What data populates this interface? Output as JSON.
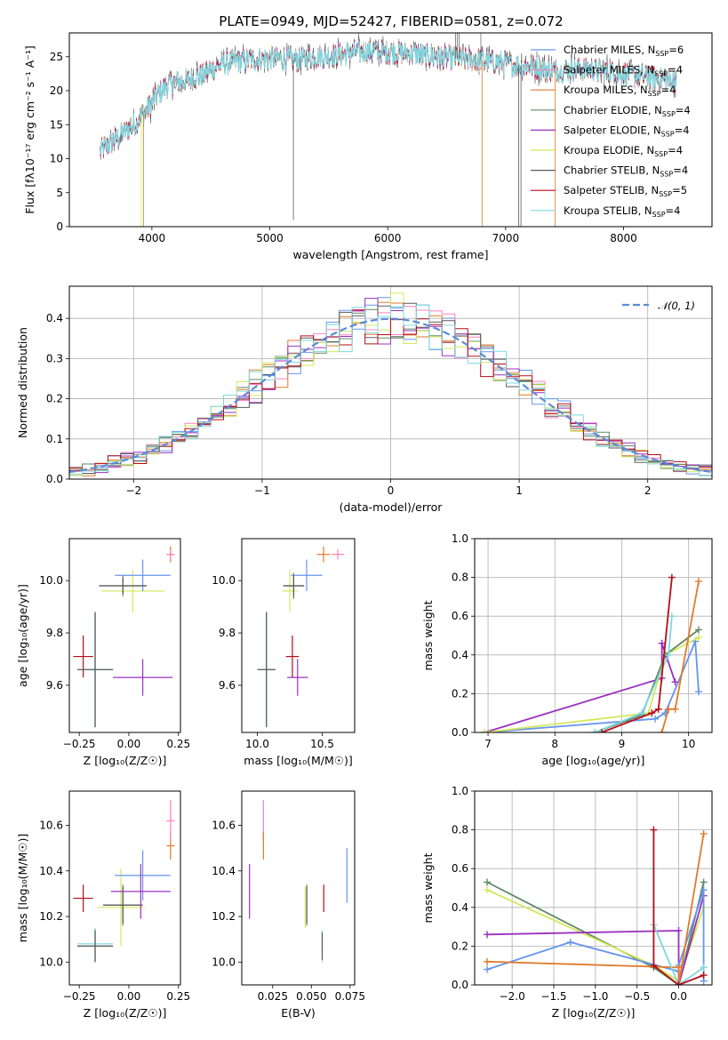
{
  "figure_title": "PLATE=0949, MJD=52427, FIBERID=0581, z=0.072",
  "chart_data": [
    {
      "id": "spectrum",
      "type": "line",
      "xlabel": "wavelength [Angstrom, rest frame]",
      "ylabel": "Flux [fλ10⁻¹⁷ erg cm⁻² s⁻¹ A⁻¹]",
      "xlim": [
        3300,
        8750
      ],
      "ylim": [
        0,
        28.5
      ],
      "xticks": [
        4000,
        5000,
        6000,
        7000,
        8000
      ],
      "yticks": [
        0,
        5,
        10,
        15,
        20,
        25
      ],
      "legend_position": "upper-right",
      "continuum_knots": [
        [
          3560,
          11
        ],
        [
          3700,
          13
        ],
        [
          3850,
          15
        ],
        [
          3950,
          17
        ],
        [
          4050,
          19.5
        ],
        [
          4150,
          21
        ],
        [
          4300,
          21.5
        ],
        [
          4450,
          22.5
        ],
        [
          4600,
          24
        ],
        [
          4800,
          24.5
        ],
        [
          5000,
          24.8
        ],
        [
          5200,
          24.5
        ],
        [
          5400,
          25
        ],
        [
          5600,
          25.3
        ],
        [
          5800,
          25.8
        ],
        [
          6000,
          25.7
        ],
        [
          6200,
          25.5
        ],
        [
          6400,
          25
        ],
        [
          6600,
          24.7
        ],
        [
          6800,
          24.5
        ],
        [
          7000,
          24
        ],
        [
          7200,
          23.5
        ],
        [
          7400,
          23
        ],
        [
          7600,
          23.2
        ],
        [
          7800,
          23
        ],
        [
          8000,
          22.5
        ],
        [
          8200,
          22
        ],
        [
          8400,
          21.5
        ]
      ],
      "series": [
        {
          "name": "Chabrier MILES, N",
          "sub": "SSP",
          "val": "=6",
          "color": "#6495ed"
        },
        {
          "name": "Salpeter MILES, N",
          "sub": "SSP",
          "val": "=4",
          "color": "#ff7fbf"
        },
        {
          "name": "Kroupa MILES, N",
          "sub": "SSP",
          "val": "=4",
          "color": "#e07a2c"
        },
        {
          "name": "Chabrier ELODIE, N",
          "sub": "SSP",
          "val": "=4",
          "color": "#5f8a64"
        },
        {
          "name": "Salpeter ELODIE, N",
          "sub": "SSP",
          "val": "=4",
          "color": "#9b30c0"
        },
        {
          "name": "Kroupa ELODIE, N",
          "sub": "SSP",
          "val": "=4",
          "color": "#d4e85a"
        },
        {
          "name": "Chabrier STELIB, N",
          "sub": "SSP",
          "val": "=4",
          "color": "#5a5a5a"
        },
        {
          "name": "Salpeter STELIB, N",
          "sub": "SSP",
          "val": "=5",
          "color": "#b50d1a"
        },
        {
          "name": "Kroupa STELIB, N",
          "sub": "SSP",
          "val": "=4",
          "color": "#7fd8e0"
        }
      ]
    },
    {
      "id": "residuals",
      "type": "step",
      "xlabel": "(data-model)/error",
      "ylabel": "Normed distribution",
      "xlim": [
        -2.5,
        2.5
      ],
      "ylim": [
        0,
        0.48
      ],
      "xticks": [
        -2,
        -1,
        0,
        1,
        2
      ],
      "xtick_labels": [
        "−2",
        "−1",
        "0",
        "1",
        "2"
      ],
      "yticks": [
        0,
        0.1,
        0.2,
        0.3,
        0.4
      ],
      "ytick_labels": [
        "0.0",
        "0.1",
        "0.2",
        "0.3",
        "0.4"
      ],
      "grid": true,
      "legend_position": "upper-right",
      "gaussian_label": "𝒩(0, 1)",
      "gaussian_color": "#5b8bd6"
    },
    {
      "id": "age-vs-Z",
      "type": "errorbar",
      "xlabel": "Z [log₁₀(Z/Z☉)]",
      "ylabel": "age  [log₁₀(age/yr)]",
      "xlim": [
        -0.3,
        0.26
      ],
      "ylim": [
        9.42,
        10.16
      ],
      "xticks": [
        -0.25,
        0,
        0.25
      ],
      "xtick_labels": [
        "−0.25",
        "0.00",
        "0.25"
      ],
      "yticks": [
        9.6,
        9.8,
        10.0
      ],
      "ytick_labels": [
        "9.6",
        "9.8",
        "10.0"
      ],
      "points": [
        {
          "c": 5,
          "x": 0.02,
          "xe": 0.16,
          "y": 9.96,
          "ye": 0.08
        },
        {
          "c": 0,
          "x": 0.07,
          "xe": 0.14,
          "y": 10.02,
          "ye": 0.06
        },
        {
          "c": 3,
          "x": -0.03,
          "xe": 0.12,
          "y": 9.98,
          "ye": 0.04
        },
        {
          "c": 6,
          "x": -0.03,
          "xe": 0.12,
          "y": 9.98,
          "ye": 0.03
        },
        {
          "c": 4,
          "x": 0.07,
          "xe": 0.15,
          "y": 9.63,
          "ye": 0.07
        },
        {
          "c": 7,
          "x": -0.23,
          "xe": 0.05,
          "y": 9.71,
          "ye": 0.08
        },
        {
          "c": 3,
          "x": -0.17,
          "xe": 0.09,
          "y": 9.66,
          "ye": 0.22
        },
        {
          "c": 8,
          "x": -0.17,
          "xe": 0.09,
          "y": 9.66,
          "ye": 0.22
        },
        {
          "c": 6,
          "x": -0.17,
          "xe": 0.09,
          "y": 9.66,
          "ye": 0.22
        },
        {
          "c": 2,
          "x": 0.21,
          "xe": 0.02,
          "y": 10.1,
          "ye": 0.03
        },
        {
          "c": 1,
          "x": 0.21,
          "xe": 0.02,
          "y": 10.1,
          "ye": 0.02
        }
      ]
    },
    {
      "id": "age-vs-mass",
      "type": "errorbar",
      "xlabel": "mass [log₁₀(M/M☉)]",
      "ylabel": "",
      "xlim": [
        9.88,
        10.75
      ],
      "ylim": [
        9.42,
        10.16
      ],
      "xticks": [
        10.0,
        10.5
      ],
      "xtick_labels": [
        "10.0",
        "10.5"
      ],
      "yticks": [
        9.6,
        9.8,
        10.0
      ],
      "ytick_labels": [
        "9.6",
        "9.8",
        "10.0"
      ],
      "points": [
        {
          "c": 5,
          "x": 10.25,
          "xe": 0.06,
          "y": 9.96,
          "ye": 0.08
        },
        {
          "c": 0,
          "x": 10.38,
          "xe": 0.12,
          "y": 10.02,
          "ye": 0.06
        },
        {
          "c": 3,
          "x": 10.28,
          "xe": 0.08,
          "y": 9.98,
          "ye": 0.05
        },
        {
          "c": 6,
          "x": 10.28,
          "xe": 0.08,
          "y": 9.98,
          "ye": 0.04
        },
        {
          "c": 4,
          "x": 10.31,
          "xe": 0.08,
          "y": 9.63,
          "ye": 0.07
        },
        {
          "c": 7,
          "x": 10.27,
          "xe": 0.05,
          "y": 9.71,
          "ye": 0.08
        },
        {
          "c": 3,
          "x": 10.07,
          "xe": 0.07,
          "y": 9.66,
          "ye": 0.22
        },
        {
          "c": 8,
          "x": 10.07,
          "xe": 0.07,
          "y": 9.66,
          "ye": 0.22
        },
        {
          "c": 6,
          "x": 10.07,
          "xe": 0.07,
          "y": 9.66,
          "ye": 0.22
        },
        {
          "c": 2,
          "x": 10.51,
          "xe": 0.05,
          "y": 10.1,
          "ye": 0.03
        },
        {
          "c": 1,
          "x": 10.62,
          "xe": 0.05,
          "y": 10.1,
          "ye": 0.02
        }
      ]
    },
    {
      "id": "mass-weight-vs-age",
      "type": "line",
      "xlabel": "age  [log₁₀(age/yr)]",
      "ylabel": "mass weight",
      "xlim": [
        6.8,
        10.35
      ],
      "ylim": [
        0,
        1.0
      ],
      "xticks": [
        7,
        8,
        9,
        10
      ],
      "xtick_labels": [
        "7",
        "8",
        "9",
        "10"
      ],
      "yticks": [
        0,
        0.2,
        0.4,
        0.6,
        0.8,
        1.0
      ],
      "ytick_labels": [
        "0.0",
        "0.2",
        "0.4",
        "0.6",
        "0.8",
        "1.0"
      ],
      "grid": true,
      "lines": [
        {
          "c": 0,
          "pts": [
            [
              6.95,
              0.0
            ],
            [
              9.5,
              0.07
            ],
            [
              9.65,
              0.1
            ],
            [
              10.1,
              0.47
            ],
            [
              10.15,
              0.21
            ]
          ]
        },
        {
          "c": 4,
          "pts": [
            [
              6.95,
              0.0
            ],
            [
              9.6,
              0.28
            ],
            [
              9.6,
              0.46
            ],
            [
              9.8,
              0.26
            ]
          ]
        },
        {
          "c": 5,
          "pts": [
            [
              6.95,
              0.0
            ],
            [
              9.4,
              0.1
            ],
            [
              9.65,
              0.4
            ],
            [
              10.15,
              0.49
            ]
          ]
        },
        {
          "c": 3,
          "pts": [
            [
              8.6,
              0.0
            ],
            [
              9.3,
              0.09
            ],
            [
              9.65,
              0.4
            ],
            [
              10.15,
              0.53
            ]
          ]
        },
        {
          "c": 8,
          "pts": [
            [
              8.6,
              0.0
            ],
            [
              9.3,
              0.1
            ],
            [
              9.7,
              0.4
            ],
            [
              9.75,
              0.6
            ]
          ]
        },
        {
          "c": 7,
          "pts": [
            [
              8.7,
              0.0
            ],
            [
              9.45,
              0.1
            ],
            [
              9.55,
              0.12
            ],
            [
              9.75,
              0.8
            ]
          ]
        },
        {
          "c": 2,
          "pts": [
            [
              9.6,
              0.0
            ],
            [
              9.7,
              0.12
            ],
            [
              9.8,
              0.12
            ],
            [
              10.15,
              0.78
            ]
          ]
        }
      ]
    },
    {
      "id": "mass-vs-Z",
      "type": "errorbar",
      "xlabel": "Z [log₁₀(Z/Z☉)]",
      "ylabel": "mass [log₁₀(M/M☉)]",
      "xlim": [
        -0.3,
        0.26
      ],
      "ylim": [
        9.9,
        10.75
      ],
      "xticks": [
        -0.25,
        0,
        0.25
      ],
      "xtick_labels": [
        "−0.25",
        "0.00",
        "0.25"
      ],
      "yticks": [
        10.0,
        10.2,
        10.4,
        10.6
      ],
      "ytick_labels": [
        "10.0",
        "10.2",
        "10.4",
        "10.6"
      ],
      "points": [
        {
          "c": 5,
          "x": -0.04,
          "xe": 0.12,
          "y": 10.24,
          "ye": 0.17
        },
        {
          "c": 0,
          "x": 0.07,
          "xe": 0.14,
          "y": 10.38,
          "ye": 0.11
        },
        {
          "c": 3,
          "x": -0.03,
          "xe": 0.1,
          "y": 10.25,
          "ye": 0.09
        },
        {
          "c": 6,
          "x": -0.03,
          "xe": 0.1,
          "y": 10.25,
          "ye": 0.08
        },
        {
          "c": 4,
          "x": 0.06,
          "xe": 0.15,
          "y": 10.31,
          "ye": 0.12
        },
        {
          "c": 7,
          "x": -0.23,
          "xe": 0.05,
          "y": 10.28,
          "ye": 0.06
        },
        {
          "c": 3,
          "x": -0.17,
          "xe": 0.09,
          "y": 10.07,
          "ye": 0.07
        },
        {
          "c": 8,
          "x": -0.17,
          "xe": 0.09,
          "y": 10.08,
          "ye": 0.07
        },
        {
          "c": 6,
          "x": -0.17,
          "xe": 0.09,
          "y": 10.07,
          "ye": 0.07
        },
        {
          "c": 2,
          "x": 0.21,
          "xe": 0.02,
          "y": 10.51,
          "ye": 0.06
        },
        {
          "c": 1,
          "x": 0.21,
          "xe": 0.02,
          "y": 10.62,
          "ye": 0.09
        }
      ]
    },
    {
      "id": "mass-vs-ebv",
      "type": "errorbar",
      "xlabel": "E(B-V)",
      "ylabel": "",
      "xlim": [
        0.005,
        0.078
      ],
      "ylim": [
        9.9,
        10.75
      ],
      "xticks": [
        0.025,
        0.05,
        0.075
      ],
      "xtick_labels": [
        "0.025",
        "0.050",
        "0.075"
      ],
      "yticks": [
        10.0,
        10.2,
        10.4,
        10.6
      ],
      "ytick_labels": [
        "10.0",
        "10.2",
        "10.4",
        "10.6"
      ],
      "points": [
        {
          "c": 4,
          "x": 0.01,
          "xe": 0,
          "y": 10.31,
          "ye": 0.12
        },
        {
          "c": 1,
          "x": 0.019,
          "xe": 0,
          "y": 10.62,
          "ye": 0.09
        },
        {
          "c": 2,
          "x": 0.019,
          "xe": 0,
          "y": 10.51,
          "ye": 0.06
        },
        {
          "c": 5,
          "x": 0.046,
          "xe": 0,
          "y": 10.24,
          "ye": 0.09
        },
        {
          "c": 3,
          "x": 0.047,
          "xe": 0,
          "y": 10.25,
          "ye": 0.09
        },
        {
          "c": 6,
          "x": 0.047,
          "xe": 0,
          "y": 10.25,
          "ye": 0.08
        },
        {
          "c": 8,
          "x": 0.057,
          "xe": 0,
          "y": 10.07,
          "ye": 0.07
        },
        {
          "c": 6,
          "x": 0.057,
          "xe": 0,
          "y": 10.07,
          "ye": 0.06
        },
        {
          "c": 7,
          "x": 0.058,
          "xe": 0,
          "y": 10.28,
          "ye": 0.06
        },
        {
          "c": 0,
          "x": 0.073,
          "xe": 0,
          "y": 10.38,
          "ye": 0.12
        }
      ]
    },
    {
      "id": "mass-weight-vs-Z",
      "type": "line",
      "xlabel": "Z [log₁₀(Z/Z☉)]",
      "ylabel": "mass weight",
      "xlim": [
        -2.45,
        0.4
      ],
      "ylim": [
        0,
        1.0
      ],
      "xticks": [
        -2.0,
        -1.5,
        -1.0,
        -0.5,
        0.0
      ],
      "xtick_labels": [
        "−2.0",
        "−1.5",
        "−1.0",
        "−0.5",
        "0.0"
      ],
      "yticks": [
        0,
        0.2,
        0.4,
        0.6,
        0.8,
        1.0
      ],
      "ytick_labels": [
        "0.0",
        "0.2",
        "0.4",
        "0.6",
        "0.8",
        "1.0"
      ],
      "grid": true,
      "lines": [
        {
          "c": 3,
          "pts": [
            [
              -2.3,
              0.53
            ],
            [
              -0.3,
              0.09
            ],
            [
              0.0,
              0.0
            ],
            [
              0.3,
              0.53
            ]
          ]
        },
        {
          "c": 5,
          "pts": [
            [
              -2.3,
              0.49
            ],
            [
              -0.3,
              0.1
            ],
            [
              0.0,
              0.02
            ],
            [
              0.3,
              0.4
            ]
          ]
        },
        {
          "c": 4,
          "pts": [
            [
              -2.3,
              0.26
            ],
            [
              0.0,
              0.28
            ],
            [
              0.0,
              0.0
            ],
            [
              0.3,
              0.46
            ]
          ]
        },
        {
          "c": 0,
          "pts": [
            [
              -2.3,
              0.08
            ],
            [
              -1.3,
              0.22
            ],
            [
              0.0,
              0.07
            ],
            [
              0.0,
              0.1
            ],
            [
              0.3,
              0.49
            ],
            [
              0.3,
              0.02
            ]
          ]
        },
        {
          "c": 2,
          "pts": [
            [
              -2.3,
              0.12
            ],
            [
              0.0,
              0.09
            ],
            [
              0.0,
              0.0
            ],
            [
              0.3,
              0.78
            ]
          ]
        },
        {
          "c": 8,
          "pts": [
            [
              -0.3,
              0.6
            ],
            [
              -0.3,
              0.31
            ],
            [
              0.0,
              0.0
            ],
            [
              0.3,
              0.09
            ]
          ]
        },
        {
          "c": 7,
          "pts": [
            [
              -0.3,
              0.8
            ],
            [
              -0.3,
              0.1
            ],
            [
              0.0,
              0.0
            ],
            [
              0.3,
              0.05
            ]
          ]
        }
      ]
    }
  ]
}
